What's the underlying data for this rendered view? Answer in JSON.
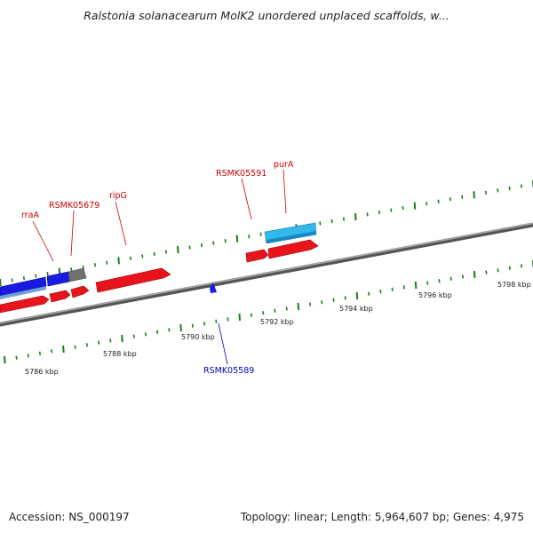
{
  "title": "Ralstonia solanacearum MolK2 unordered unplaced scaffolds, w...",
  "footer": {
    "accession": "Accession: NS_000197",
    "summary": "Topology: linear; Length: 5,964,607 bp; Genes: 4,975"
  },
  "axis": {
    "unit": "kbp",
    "ticks": [
      "5786 kbp",
      "5788 kbp",
      "5790 kbp",
      "5792 kbp",
      "5794 kbp",
      "5796 kbp",
      "5798 kbp"
    ]
  },
  "colors": {
    "forward_gene": "#e8141c",
    "reverse_gene": "#1a1ae0",
    "rna_gene": "#33b8e8",
    "pseudo": "#707070",
    "label_red": "#cc0000",
    "label_blue": "#0000bb",
    "tick_green": "#1f7a1f"
  },
  "genes": [
    {
      "name": "rraA"
    },
    {
      "name": "RSMK05679"
    },
    {
      "name": "ripG"
    },
    {
      "name": "RSMK05591"
    },
    {
      "name": "purA"
    },
    {
      "name": "RSMK05589"
    }
  ]
}
